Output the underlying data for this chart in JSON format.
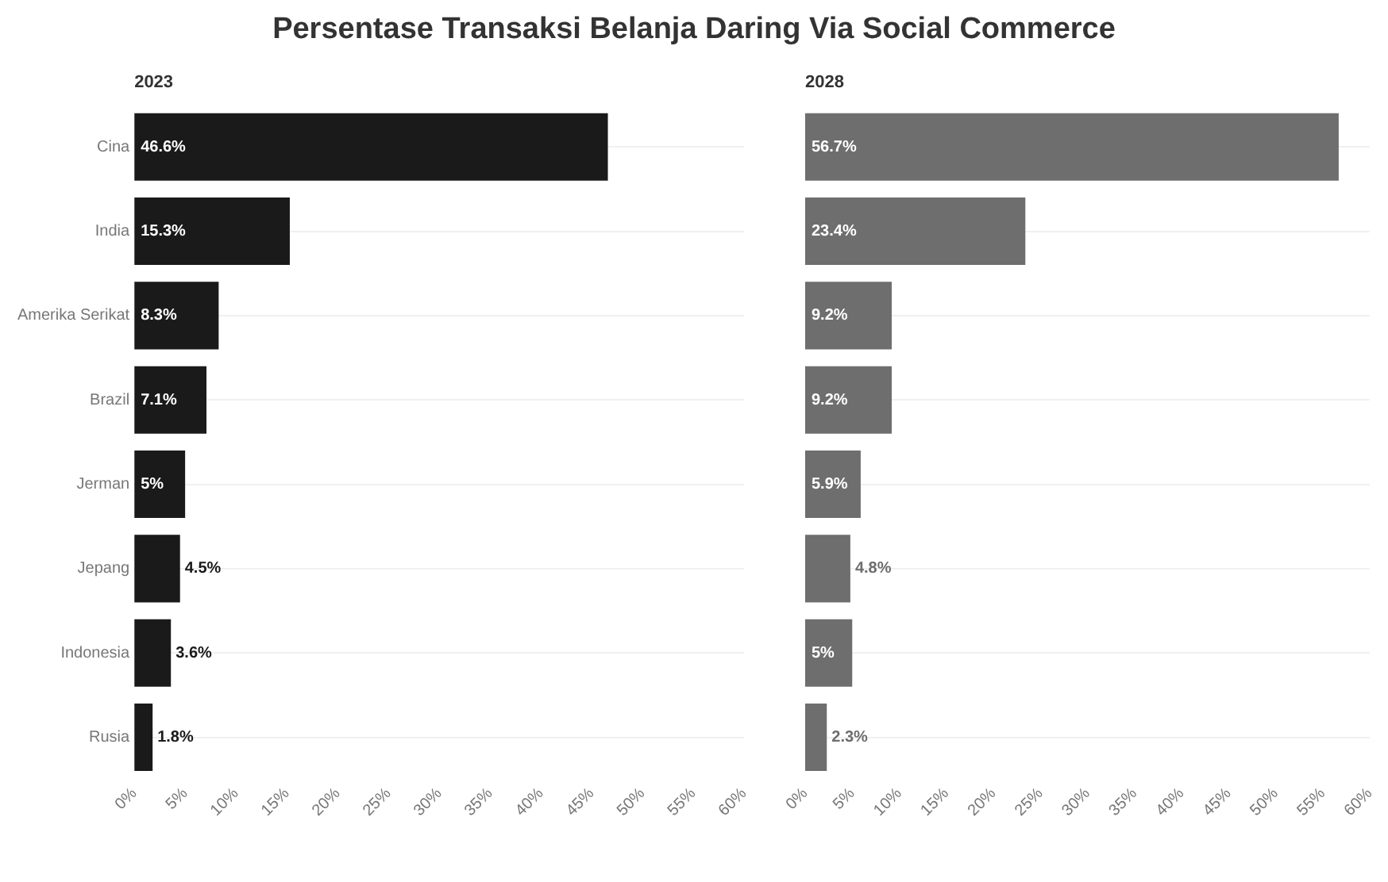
{
  "chart_data": [
    {
      "type": "bar",
      "title": "Persentase Transaksi Belanja Daring Via Social Commerce",
      "subtitle": "2023",
      "orientation": "horizontal",
      "categories": [
        "Cina",
        "India",
        "Amerika Serikat",
        "Brazil",
        "Jerman",
        "Jepang",
        "Indonesia",
        "Rusia"
      ],
      "values": [
        46.6,
        15.3,
        8.3,
        7.1,
        5,
        4.5,
        3.6,
        1.8
      ],
      "color": "#1a1a1a",
      "value_labels": [
        "46.6%",
        "15.3%",
        "8.3%",
        "7.1%",
        "5%",
        "4.5%",
        "3.6%",
        "1.8%"
      ],
      "xlim": [
        0,
        60
      ],
      "xticks": [
        {
          "value": 0,
          "label": "0%"
        },
        {
          "value": 5,
          "label": "5%"
        },
        {
          "value": 10,
          "label": "10%"
        },
        {
          "value": 15,
          "label": "15%"
        },
        {
          "value": 20,
          "label": "20%"
        },
        {
          "value": 25,
          "label": "25%"
        },
        {
          "value": 30,
          "label": "30%"
        },
        {
          "value": 35,
          "label": "35%"
        },
        {
          "value": 40,
          "label": "40%"
        },
        {
          "value": 45,
          "label": "45%"
        },
        {
          "value": 50,
          "label": "50%"
        },
        {
          "value": 55,
          "label": "55%"
        },
        {
          "value": 60,
          "label": "60%"
        }
      ],
      "grid": "y",
      "legend": false
    },
    {
      "type": "bar",
      "subtitle": "2028",
      "orientation": "horizontal",
      "categories": [
        null,
        null,
        null,
        null,
        null,
        null,
        null,
        null
      ],
      "values": [
        56.7,
        23.4,
        9.2,
        9.2,
        5.9,
        4.8,
        5,
        2.3
      ],
      "color": "#6e6e6e",
      "value_labels": [
        "56.7%",
        "23.4%",
        "9.2%",
        "9.2%",
        "5.9%",
        "4.8%",
        "5%",
        "2.3%"
      ],
      "xlim": [
        0,
        60
      ],
      "xticks": [
        {
          "value": 0,
          "label": "0%"
        },
        {
          "value": 5,
          "label": "5%"
        },
        {
          "value": 10,
          "label": "10%"
        },
        {
          "value": 15,
          "label": "15%"
        },
        {
          "value": 20,
          "label": "20%"
        },
        {
          "value": 25,
          "label": "25%"
        },
        {
          "value": 30,
          "label": "30%"
        },
        {
          "value": 35,
          "label": "35%"
        },
        {
          "value": 40,
          "label": "40%"
        },
        {
          "value": 45,
          "label": "45%"
        },
        {
          "value": 50,
          "label": "50%"
        },
        {
          "value": 55,
          "label": "55%"
        },
        {
          "value": 60,
          "label": "60%"
        }
      ],
      "grid": "y",
      "tick_labels": "x",
      "legend": false
    }
  ]
}
